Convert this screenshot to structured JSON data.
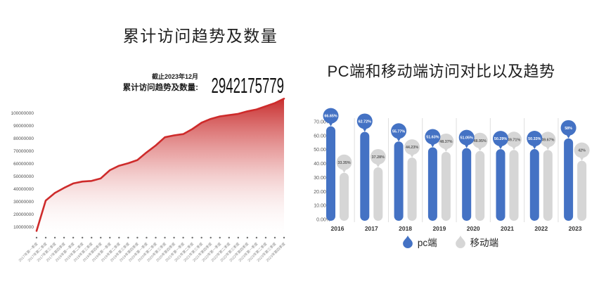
{
  "left_panel": {
    "title": "累计访问趋势及数量",
    "annotation": {
      "date_note": "截止2023年12月",
      "label": "累计访问趋势及数量:",
      "value": "2942175779"
    }
  },
  "right_panel": {
    "title": "PC端和移动端访问对比以及趋势",
    "legend": [
      {
        "label": "pc端",
        "color": "#4472C4"
      },
      {
        "label": "移动端",
        "color": "#D6D6D6"
      }
    ]
  },
  "chart_data": [
    {
      "type": "area",
      "title": "累计访问趋势及数量",
      "x": [
        "2017年第一季度",
        "2017年第二季度",
        "2017年第三季度",
        "2017年第四季度",
        "2018年第一季度",
        "2018年第二季度",
        "2018年第三季度",
        "2018年第四季度",
        "2019年第一季度",
        "2019年第二季度",
        "2019年第三季度",
        "2019年第四季度",
        "2020年第一季度",
        "2020年第二季度",
        "2020年第三季度",
        "2020年第四季度",
        "2021年第一季度",
        "2021年第二季度",
        "2021年第三季度",
        "2021年第四季度",
        "2022年第一季度",
        "2022年第二季度",
        "2022年第三季度",
        "2022年第四季度",
        "2023年第一季度",
        "2023年第二季度",
        "2023年第三季度",
        "2023年第四季度"
      ],
      "values": [
        7000000,
        31000000,
        37000000,
        41000000,
        44500000,
        46000000,
        46500000,
        48500000,
        55000000,
        58500000,
        60500000,
        63000000,
        69000000,
        74500000,
        81000000,
        82500000,
        83500000,
        87500000,
        92500000,
        95500000,
        97500000,
        98500000,
        99500000,
        101500000,
        103000000,
        105500000,
        108000000,
        111500000
      ],
      "yticks": [
        10000000,
        20000000,
        30000000,
        40000000,
        50000000,
        60000000,
        70000000,
        80000000,
        90000000,
        100000000
      ],
      "ylim": [
        0,
        115000000
      ],
      "xlabel": "",
      "ylabel": "",
      "grid": false,
      "legend_position": "none",
      "line_color": "#CE2B2B",
      "fill_style": "red-to-white vertical gradient",
      "annotation_total": "2942175779",
      "annotation_as_of": "截止2023年12月"
    },
    {
      "type": "bar",
      "title": "PC端和移动端访问对比以及趋势",
      "categories": [
        "2016",
        "2017",
        "2018",
        "2019",
        "2020",
        "2021",
        "2022",
        "2023"
      ],
      "series": [
        {
          "name": "pc端",
          "color": "#4472C4",
          "values": [
            66.65,
            62.72,
            55.77,
            51.63,
            51.05,
            50.29,
            50.33,
            58
          ],
          "labels": [
            "66.65%",
            "62.72%",
            "55.77%",
            "51.63%",
            "51.05%",
            "50.29%",
            "50.33%",
            "58%"
          ]
        },
        {
          "name": "移动端",
          "color": "#D6D6D6",
          "values": [
            33.35,
            37.28,
            44.23,
            48.37,
            48.95,
            49.71,
            49.67,
            42
          ],
          "labels": [
            "33.35%",
            "37.28%",
            "44.23%",
            "48.37%",
            "48.95%",
            "49.71%",
            "49.67%",
            "42%"
          ]
        }
      ],
      "yticks": [
        0,
        10,
        20,
        30,
        40,
        50,
        60,
        70
      ],
      "ytick_labels": [
        "0.00%",
        "10.00%",
        "20.00%",
        "30.00%",
        "40.00%",
        "50.00%",
        "60.00%",
        "70.00%"
      ],
      "ylim": [
        0,
        70
      ],
      "grid": false,
      "legend_position": "bottom"
    }
  ]
}
